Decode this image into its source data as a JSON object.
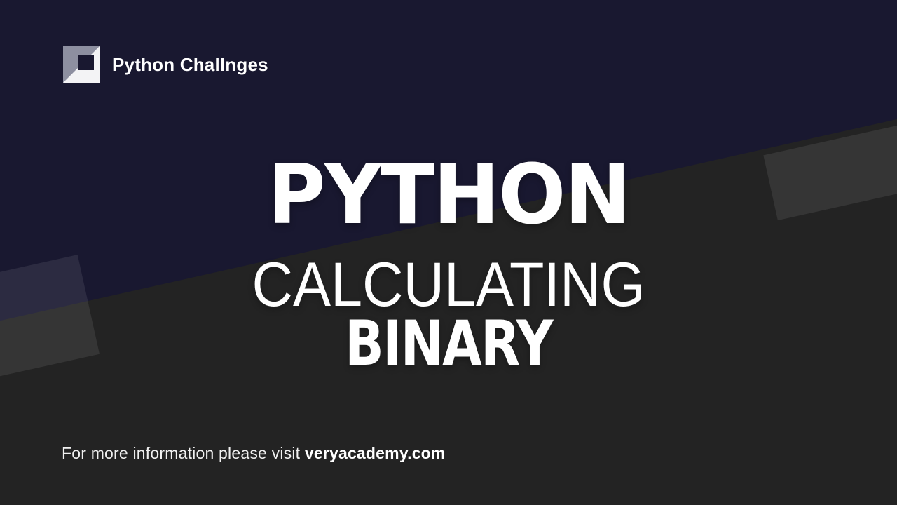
{
  "brand": {
    "name": "Python Challnges",
    "icon": "diagonal-split-square-logo-icon"
  },
  "title": {
    "line1": "PYTHON",
    "line2": "CALCULATING",
    "line3": "BINARY"
  },
  "footer": {
    "prefix": "For more information please visit ",
    "domain": "veryacademy.com"
  },
  "colors": {
    "background_navy": "#191830",
    "background_charcoal": "#232323",
    "decor_overlay": "rgba(255,255,255,0.085)",
    "heading_text": "#ffffff",
    "footer_text": "#f1f1f1",
    "logo_gray": "#8d8fa0",
    "logo_white": "#f3f3f5"
  }
}
